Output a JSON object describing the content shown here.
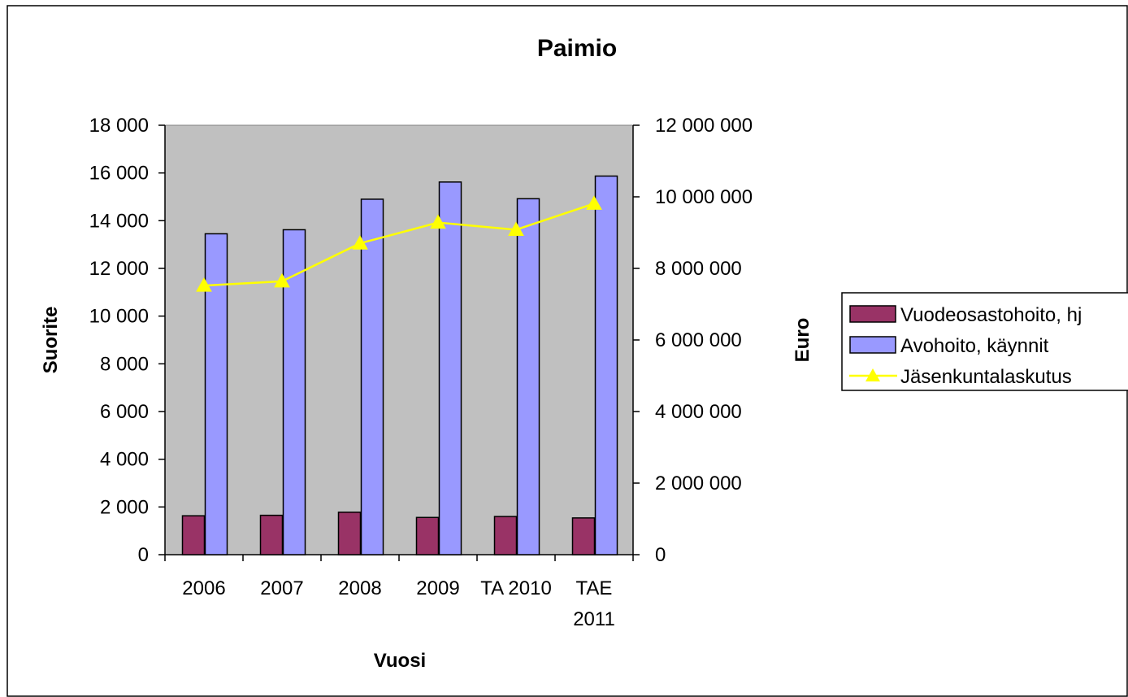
{
  "chart_data": {
    "type": "bar",
    "title": "Paimio",
    "xlabel": "Vuosi",
    "ylabel": "Suorite",
    "y2label": "Euro",
    "categories": [
      "2006",
      "2007",
      "2008",
      "2009",
      "TA 2010",
      "TAE 2011"
    ],
    "category_lines": [
      [
        "2006"
      ],
      [
        "2007"
      ],
      [
        "2008"
      ],
      [
        "2009"
      ],
      [
        "TA 2010"
      ],
      [
        "TAE",
        "2011"
      ]
    ],
    "ylim": [
      0,
      18000
    ],
    "yticks": [
      "0",
      "2 000",
      "4 000",
      "6 000",
      "8 000",
      "10 000",
      "12 000",
      "14 000",
      "16 000",
      "18 000"
    ],
    "y2lim": [
      0,
      12000000
    ],
    "y2ticks": [
      "0",
      "2 000 000",
      "4 000 000",
      "6 000 000",
      "8 000 000",
      "10 000 000",
      "12 000 000"
    ],
    "series": [
      {
        "name": "Vuodeosastohoito, hj",
        "type": "bar",
        "axis": "left",
        "color": "#993366",
        "values": [
          1630,
          1650,
          1780,
          1560,
          1600,
          1540
        ]
      },
      {
        "name": "Avohoito, käynnit",
        "type": "bar",
        "axis": "left",
        "color": "#9999FF",
        "values": [
          13450,
          13620,
          14900,
          15620,
          14920,
          15870
        ]
      },
      {
        "name": "Jäsenkuntalaskutus",
        "type": "line",
        "axis": "right",
        "color": "#FFFF00",
        "marker": "triangle",
        "values": [
          7520000,
          7640000,
          8700000,
          9280000,
          9080000,
          9810000
        ]
      }
    ],
    "plot_background": "#C0C0C0",
    "grid": false,
    "legend_position": "right"
  }
}
